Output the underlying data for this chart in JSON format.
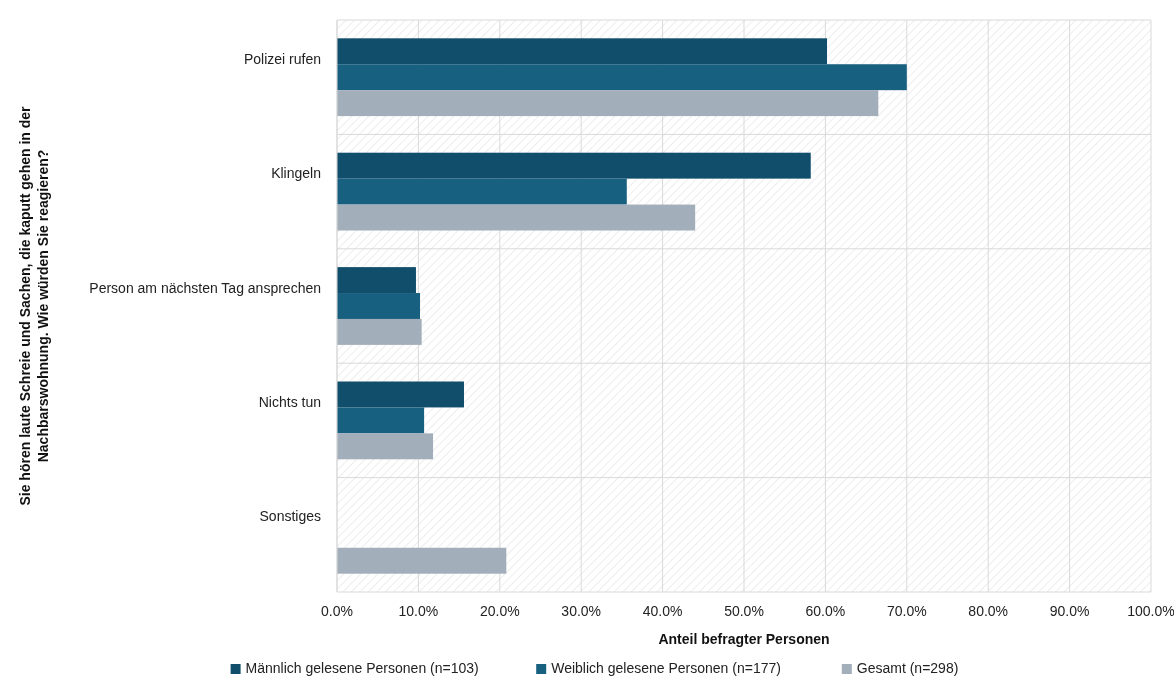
{
  "chart_data": {
    "type": "bar",
    "orientation": "horizontal",
    "xlabel": "Anteil befragter Personen",
    "ylabel": "Sie hören laute Schreie und Sachen, die kaputt gehen in der Nachbarswohnung. Wie würden Sie reagieren?",
    "categories": [
      "Polizei rufen",
      "Klingeln",
      "Person am nächsten Tag ansprechen",
      "Nichts tun",
      "Sonstiges"
    ],
    "series": [
      {
        "name": "Männlich gelesene Personen (n=103)",
        "color": "#114e6b",
        "values": [
          60.2,
          58.2,
          9.7,
          15.6,
          null
        ]
      },
      {
        "name": "Weiblich gelesene Personen (n=177)",
        "color": "#18607f",
        "values": [
          70.0,
          35.6,
          10.2,
          10.7,
          null
        ]
      },
      {
        "name": "Gesamt (n=298)",
        "color": "#a2aeba",
        "values": [
          66.5,
          44.0,
          10.4,
          11.8,
          20.8
        ]
      }
    ],
    "xlim": [
      0,
      100
    ],
    "xticks": [
      {
        "value": 0,
        "label": "0.0%"
      },
      {
        "value": 10,
        "label": "10.0%"
      },
      {
        "value": 20,
        "label": "20.0%"
      },
      {
        "value": 30,
        "label": "30.0%"
      },
      {
        "value": 40,
        "label": "40.0%"
      },
      {
        "value": 50,
        "label": "50.0%"
      },
      {
        "value": 60,
        "label": "60.0%"
      },
      {
        "value": 70,
        "label": "70.0%"
      },
      {
        "value": 80,
        "label": "80.0%"
      },
      {
        "value": 90,
        "label": "90.0%"
      },
      {
        "value": 100,
        "label": "100.0%"
      }
    ],
    "grid": true,
    "legend": "bottom"
  }
}
